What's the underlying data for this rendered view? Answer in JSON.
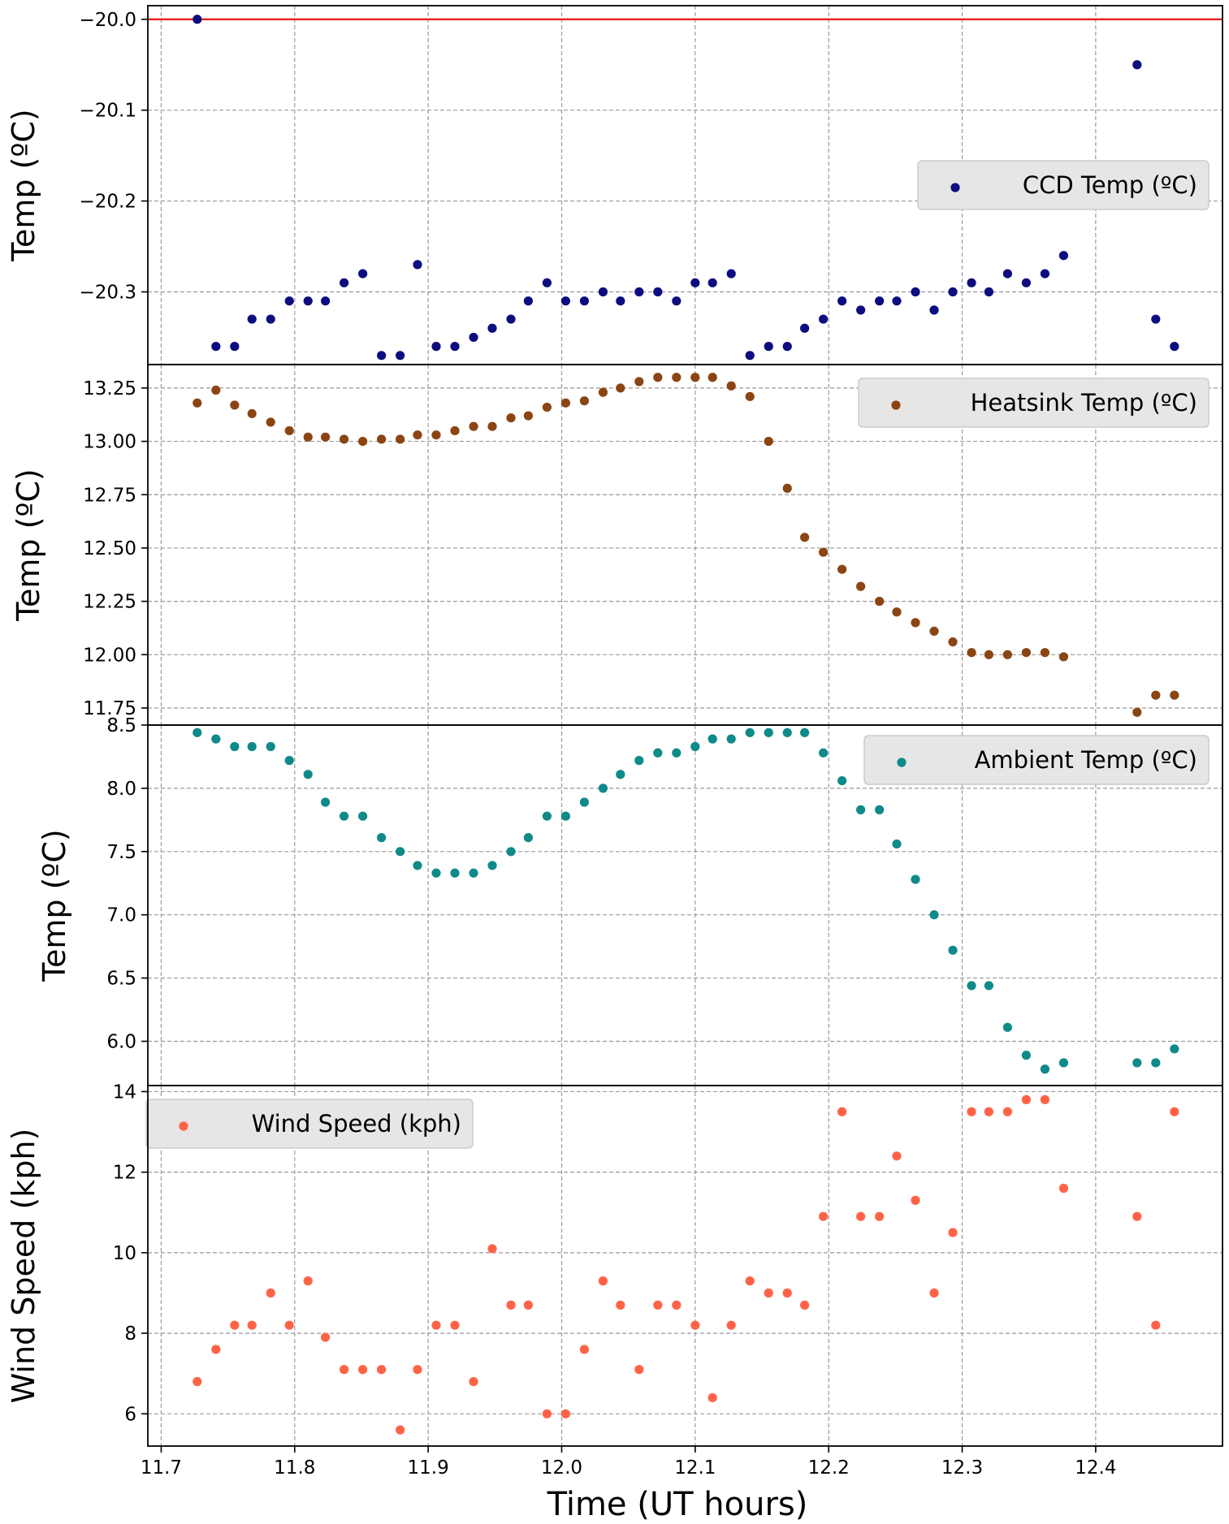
{
  "figure": {
    "xlabel": "Time (UT hours)",
    "xlim": [
      11.69,
      12.495
    ],
    "xticks": [
      11.7,
      11.8,
      11.9,
      12.0,
      12.1,
      12.2,
      12.3,
      12.4
    ],
    "xtick_labels": [
      "11.7",
      "11.8",
      "11.9",
      "12.0",
      "12.1",
      "12.2",
      "12.3",
      "12.4"
    ],
    "grid": true
  },
  "chart_data": [
    {
      "type": "scatter",
      "ylabel": "Temp (ºC)",
      "ylim": [
        -20.38,
        -19.985
      ],
      "yticks": [
        -20.0,
        -20.1,
        -20.2,
        -20.3
      ],
      "ytick_labels": [
        "−20.0",
        "−20.1",
        "−20.2",
        "−20.3"
      ],
      "legend_placement": "center-right",
      "reference_line": {
        "y": -20.0,
        "color": "#ee1111"
      },
      "series": [
        {
          "name": "CCD Temp (ºC)",
          "color": "#0d0d80",
          "x": [
            11.727,
            11.741,
            11.755,
            11.768,
            11.782,
            11.796,
            11.81,
            11.823,
            11.837,
            11.851,
            11.865,
            11.879,
            11.892,
            11.906,
            11.92,
            11.934,
            11.948,
            11.962,
            11.975,
            11.989,
            12.003,
            12.017,
            12.031,
            12.044,
            12.058,
            12.072,
            12.086,
            12.1,
            12.113,
            12.127,
            12.141,
            12.155,
            12.169,
            12.182,
            12.196,
            12.21,
            12.224,
            12.238,
            12.251,
            12.265,
            12.279,
            12.293,
            12.307,
            12.32,
            12.334,
            12.348,
            12.362,
            12.376,
            12.431,
            12.445,
            12.459
          ],
          "y": [
            -20.0,
            -20.36,
            -20.36,
            -20.33,
            -20.33,
            -20.31,
            -20.31,
            -20.31,
            -20.29,
            -20.28,
            -20.37,
            -20.37,
            -20.27,
            -20.36,
            -20.36,
            -20.35,
            -20.34,
            -20.33,
            -20.31,
            -20.29,
            -20.31,
            -20.31,
            -20.3,
            -20.31,
            -20.3,
            -20.3,
            -20.31,
            -20.29,
            -20.29,
            -20.28,
            -20.37,
            -20.36,
            -20.36,
            -20.34,
            -20.33,
            -20.31,
            -20.32,
            -20.31,
            -20.31,
            -20.3,
            -20.32,
            -20.3,
            -20.29,
            -20.3,
            -20.28,
            -20.29,
            -20.28,
            -20.26,
            -20.05,
            -20.33,
            -20.36
          ]
        }
      ]
    },
    {
      "type": "scatter",
      "ylabel": "Temp (ºC)",
      "ylim": [
        11.67,
        13.36
      ],
      "yticks": [
        11.75,
        12.0,
        12.25,
        12.5,
        12.75,
        13.0,
        13.25
      ],
      "ytick_labels": [
        "11.75",
        "12.00",
        "12.25",
        "12.50",
        "12.75",
        "13.00",
        "13.25"
      ],
      "legend_placement": "top-right",
      "series": [
        {
          "name": "Heatsink Temp (ºC)",
          "color": "#8b4513",
          "x": [
            11.727,
            11.741,
            11.755,
            11.768,
            11.782,
            11.796,
            11.81,
            11.823,
            11.837,
            11.851,
            11.865,
            11.879,
            11.892,
            11.906,
            11.92,
            11.934,
            11.948,
            11.962,
            11.975,
            11.989,
            12.003,
            12.017,
            12.031,
            12.044,
            12.058,
            12.072,
            12.086,
            12.1,
            12.113,
            12.127,
            12.141,
            12.155,
            12.169,
            12.182,
            12.196,
            12.21,
            12.224,
            12.238,
            12.251,
            12.265,
            12.279,
            12.293,
            12.307,
            12.32,
            12.334,
            12.348,
            12.362,
            12.376,
            12.431,
            12.445,
            12.459
          ],
          "y": [
            13.18,
            13.24,
            13.17,
            13.13,
            13.09,
            13.05,
            13.02,
            13.02,
            13.01,
            13.0,
            13.01,
            13.01,
            13.03,
            13.03,
            13.05,
            13.07,
            13.07,
            13.11,
            13.12,
            13.16,
            13.18,
            13.19,
            13.23,
            13.25,
            13.28,
            13.3,
            13.3,
            13.3,
            13.3,
            13.26,
            13.21,
            13.0,
            12.78,
            12.55,
            12.48,
            12.4,
            12.32,
            12.25,
            12.2,
            12.15,
            12.11,
            12.06,
            12.01,
            12.0,
            12.0,
            12.01,
            12.01,
            11.99,
            11.73,
            11.81,
            11.81
          ]
        }
      ]
    },
    {
      "type": "scatter",
      "ylabel": "Temp (ºC)",
      "ylim": [
        5.65,
        8.5
      ],
      "yticks": [
        6.0,
        6.5,
        7.0,
        7.5,
        8.0,
        8.5
      ],
      "ytick_labels": [
        "6.0",
        "6.5",
        "7.0",
        "7.5",
        "8.0",
        "8.5"
      ],
      "legend_placement": "top-right",
      "series": [
        {
          "name": "Ambient Temp (ºC)",
          "color": "#0f8a8a",
          "x": [
            11.727,
            11.741,
            11.755,
            11.768,
            11.782,
            11.796,
            11.81,
            11.823,
            11.837,
            11.851,
            11.865,
            11.879,
            11.892,
            11.906,
            11.92,
            11.934,
            11.948,
            11.962,
            11.975,
            11.989,
            12.003,
            12.017,
            12.031,
            12.044,
            12.058,
            12.072,
            12.086,
            12.1,
            12.113,
            12.127,
            12.141,
            12.155,
            12.169,
            12.182,
            12.196,
            12.21,
            12.224,
            12.238,
            12.251,
            12.265,
            12.279,
            12.293,
            12.307,
            12.32,
            12.334,
            12.348,
            12.362,
            12.376,
            12.431,
            12.445,
            12.459
          ],
          "y": [
            8.44,
            8.39,
            8.33,
            8.33,
            8.33,
            8.22,
            8.11,
            7.89,
            7.78,
            7.78,
            7.61,
            7.5,
            7.39,
            7.33,
            7.33,
            7.33,
            7.39,
            7.5,
            7.61,
            7.78,
            7.78,
            7.89,
            8.0,
            8.11,
            8.22,
            8.28,
            8.28,
            8.33,
            8.39,
            8.39,
            8.44,
            8.44,
            8.44,
            8.44,
            8.28,
            8.06,
            7.83,
            7.83,
            7.56,
            7.28,
            7.0,
            6.72,
            6.44,
            6.44,
            6.11,
            5.89,
            5.78,
            5.83,
            5.83,
            5.83,
            5.94
          ]
        }
      ]
    },
    {
      "type": "scatter",
      "ylabel": "Wind Speed (kph)",
      "ylim": [
        5.2,
        14.15
      ],
      "yticks": [
        6,
        8,
        10,
        12,
        14
      ],
      "ytick_labels": [
        "6",
        "8",
        "10",
        "12",
        "14"
      ],
      "legend_placement": "top-left",
      "series": [
        {
          "name": "Wind Speed (kph)",
          "color": "#ff6347",
          "x": [
            11.727,
            11.741,
            11.755,
            11.768,
            11.782,
            11.796,
            11.81,
            11.823,
            11.837,
            11.851,
            11.865,
            11.879,
            11.892,
            11.906,
            11.92,
            11.934,
            11.948,
            11.962,
            11.975,
            11.989,
            12.003,
            12.017,
            12.031,
            12.044,
            12.058,
            12.072,
            12.086,
            12.1,
            12.113,
            12.127,
            12.141,
            12.155,
            12.169,
            12.182,
            12.196,
            12.21,
            12.224,
            12.238,
            12.251,
            12.265,
            12.279,
            12.293,
            12.307,
            12.32,
            12.334,
            12.348,
            12.362,
            12.376,
            12.431,
            12.445,
            12.459
          ],
          "y": [
            6.8,
            7.6,
            8.2,
            8.2,
            9.0,
            8.2,
            9.3,
            7.9,
            7.1,
            7.1,
            7.1,
            5.6,
            7.1,
            8.2,
            8.2,
            6.8,
            10.1,
            8.7,
            8.7,
            6.0,
            6.0,
            7.6,
            9.3,
            8.7,
            7.1,
            8.7,
            8.7,
            8.2,
            6.4,
            8.2,
            9.3,
            9.0,
            9.0,
            8.7,
            10.9,
            13.5,
            10.9,
            10.9,
            12.4,
            11.3,
            9.0,
            10.5,
            13.5,
            13.5,
            13.5,
            13.8,
            13.8,
            11.6,
            10.9,
            8.2,
            13.5
          ]
        }
      ]
    }
  ]
}
